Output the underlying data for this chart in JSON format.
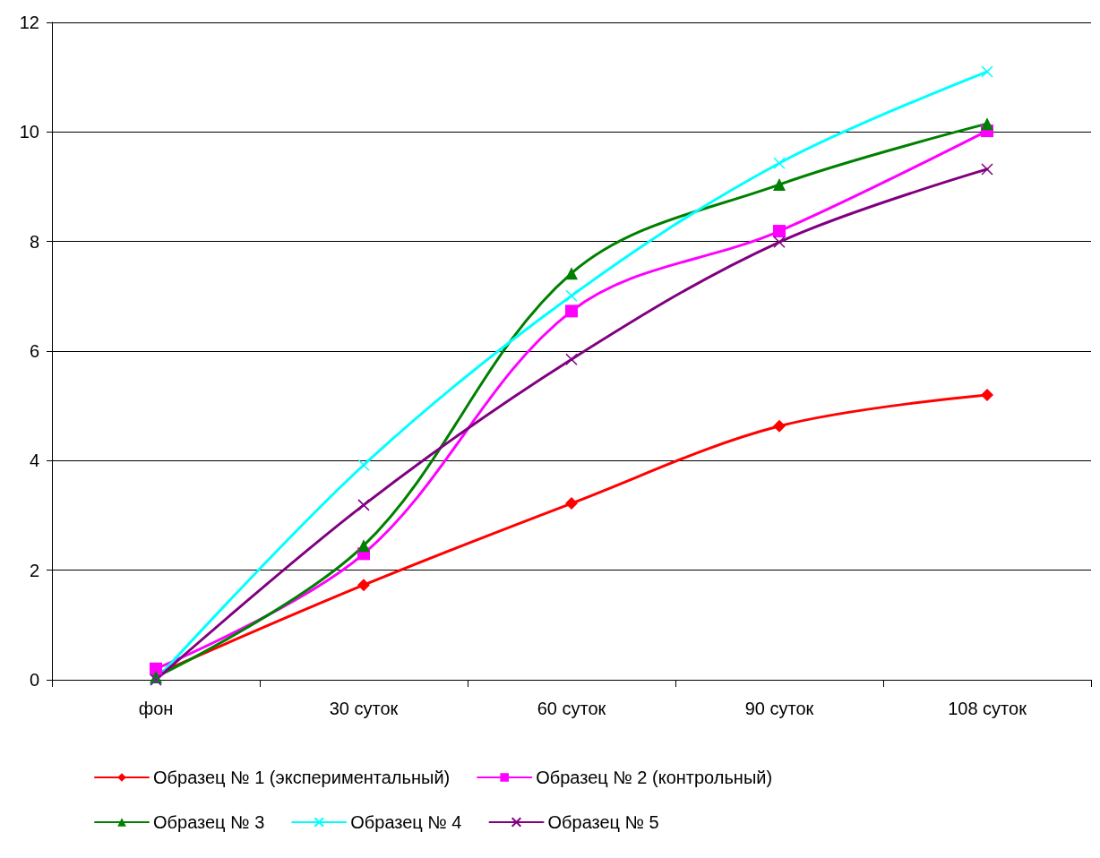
{
  "chart_data": {
    "type": "line",
    "categories": [
      "фон",
      "30 суток",
      "60 суток",
      "90 суток",
      "108 суток"
    ],
    "series": [
      {
        "name": "Образец № 1 (экспериментальный)",
        "color": "#ff0000",
        "marker": "diamond",
        "values": [
          0.1,
          1.73,
          3.22,
          4.63,
          5.2
        ]
      },
      {
        "name": "Образец № 2 (контрольный)",
        "color": "#ff00ff",
        "marker": "square",
        "values": [
          0.2,
          2.3,
          6.73,
          8.19,
          10.02
        ]
      },
      {
        "name": "Образец № 3",
        "color": "#008000",
        "marker": "triangle",
        "values": [
          0.05,
          2.45,
          7.42,
          9.04,
          10.15
        ]
      },
      {
        "name": "Образец № 4",
        "color": "#00ffff",
        "marker": "cross",
        "values": [
          0,
          3.92,
          7.01,
          9.43,
          11.1
        ]
      },
      {
        "name": "Образец № 5",
        "color": "#800080",
        "marker": "cross",
        "values": [
          0,
          3.19,
          5.85,
          7.99,
          9.32
        ]
      }
    ],
    "ylim": [
      0,
      12
    ],
    "yticks": [
      0,
      2,
      4,
      6,
      8,
      10,
      12
    ],
    "grid": "y",
    "legend": "bottom",
    "line_style": "solid"
  }
}
